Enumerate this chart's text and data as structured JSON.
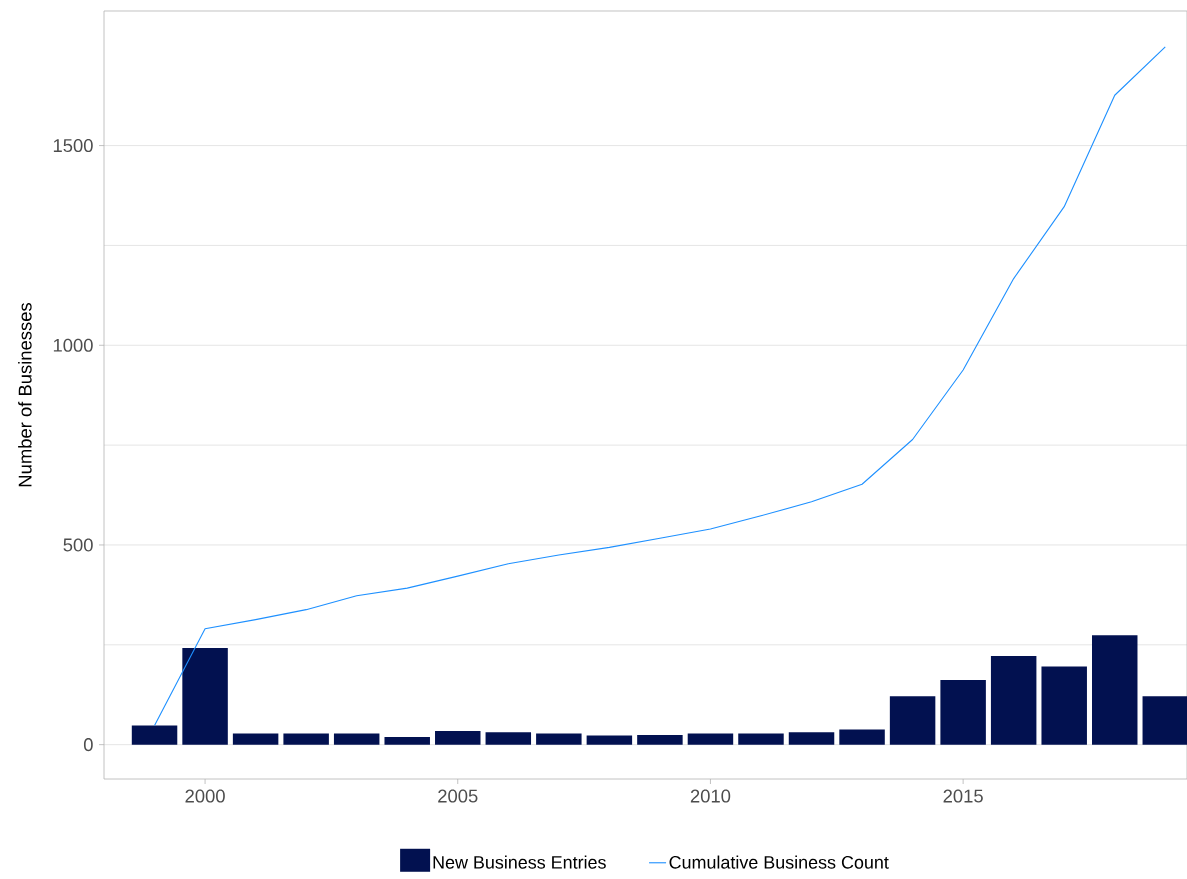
{
  "chart_data": {
    "type": "bar",
    "ylabel": "Number of Businesses",
    "x": [
      1999,
      2000,
      2001,
      2002,
      2003,
      2004,
      2005,
      2006,
      2007,
      2008,
      2009,
      2010,
      2011,
      2012,
      2013,
      2014,
      2015,
      2016,
      2017,
      2018,
      2019
    ],
    "series": [
      {
        "name": "New Business Entries",
        "color": "#021150",
        "values": [
          48,
          242,
          28,
          28,
          28,
          19,
          34,
          31,
          28,
          23,
          24,
          28,
          28,
          31,
          38,
          121,
          162,
          222,
          196,
          274,
          121
        ]
      },
      {
        "name": "Cumulative Business Count",
        "type": "line",
        "color": "#1e90ff",
        "values": [
          48,
          290,
          313,
          338,
          373,
          392,
          422,
          453,
          475,
          494,
          517,
          540,
          573,
          608,
          652,
          764,
          938,
          1167,
          1347,
          1626,
          1747
        ]
      }
    ],
    "xlim": [
      1998.0,
      2019.43
    ],
    "ylim": [
      -86,
      1837
    ],
    "xticks": [
      2000,
      2005,
      2010,
      2015
    ],
    "yticks": [
      0,
      500,
      1000,
      1500
    ],
    "grid": "y",
    "legend": "bottom"
  }
}
